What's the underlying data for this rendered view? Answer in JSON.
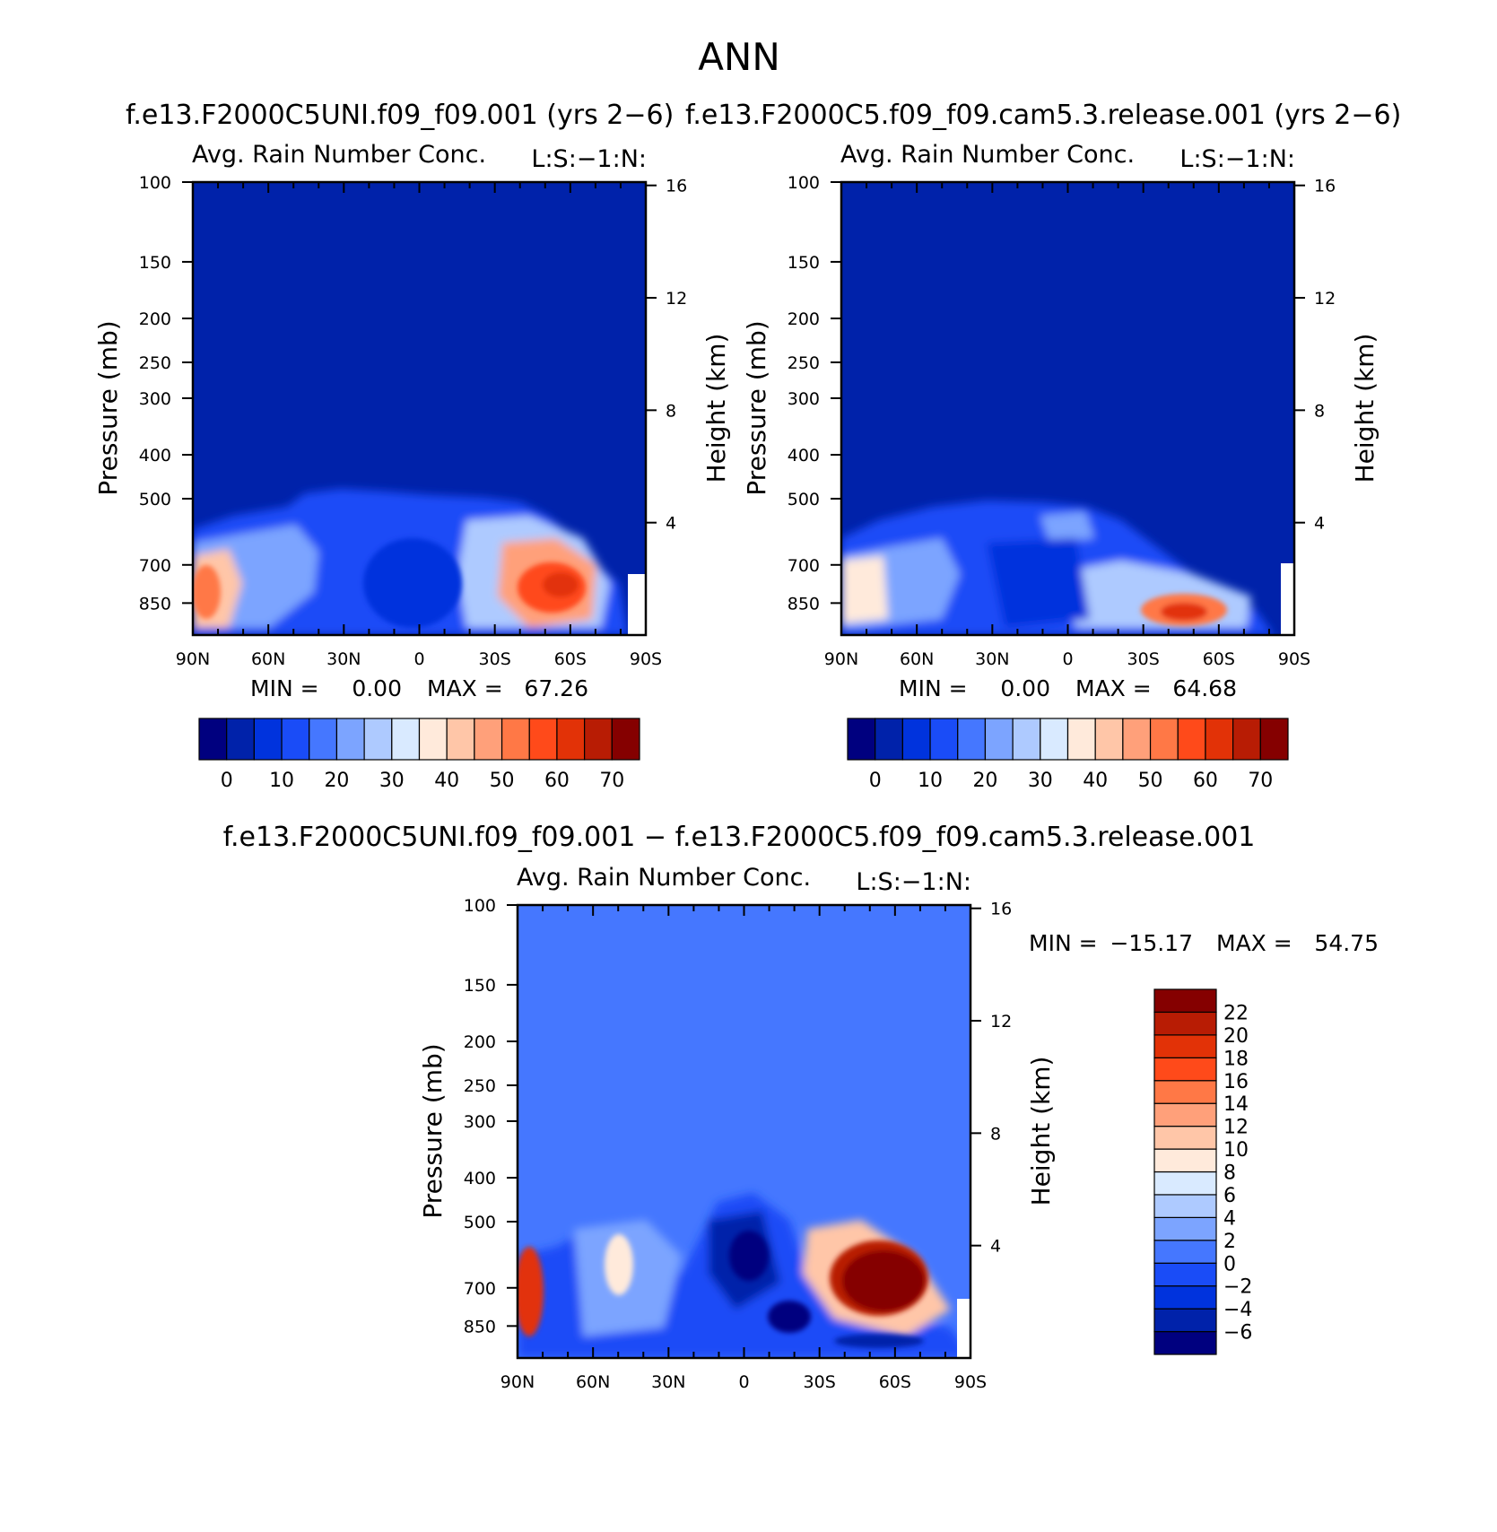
{
  "figure_title": "ANN",
  "panels": [
    {
      "case_title": "f.e13.F2000C5UNI.f09_f09.001 (yrs 2−6)",
      "variable": "Avg. Rain Number Conc.",
      "right_label": "L:S:−1:N:",
      "ylabel_left": "Pressure (mb)",
      "ylabel_right": "Height (km)",
      "min_label": "MIN =",
      "min_value": "0.00",
      "max_label": "MAX =",
      "max_value": "67.26"
    },
    {
      "case_title": "f.e13.F2000C5.f09_f09.cam5.3.release.001 (yrs 2−6)",
      "variable": "Avg. Rain Number Conc.",
      "right_label": "L:S:−1:N:",
      "ylabel_left": "Pressure (mb)",
      "ylabel_right": "Height (km)",
      "min_label": "MIN =",
      "min_value": "0.00",
      "max_label": "MAX =",
      "max_value": "64.68"
    },
    {
      "case_title": "f.e13.F2000C5UNI.f09_f09.001 − f.e13.F2000C5.f09_f09.cam5.3.release.001",
      "variable": "Avg. Rain Number Conc.",
      "right_label": "L:S:−1:N:",
      "ylabel_left": "Pressure (mb)",
      "ylabel_right": "Height (km)",
      "min_label": "MIN =",
      "min_value": "−15.17",
      "max_label": "MAX =",
      "max_value": "54.75"
    }
  ],
  "chart_data": [
    {
      "type": "heatmap",
      "title": "Avg. Rain Number Conc.",
      "subtitle": "f.e13.F2000C5UNI.f09_f09.001 (yrs 2−6)",
      "xlabel": "",
      "ylabel": "Pressure (mb)",
      "y2label": "Height (km)",
      "x_ticks": [
        "90N",
        "60N",
        "30N",
        "0",
        "30S",
        "60S",
        "90S"
      ],
      "x_values": [
        90,
        60,
        30,
        0,
        -30,
        -60,
        -90
      ],
      "xlim": [
        90,
        -90
      ],
      "y_ticks": [
        100,
        150,
        200,
        250,
        300,
        400,
        500,
        700,
        850
      ],
      "ylim": [
        100,
        1000
      ],
      "y_scale": "log",
      "y2_ticks": [
        16,
        12,
        8,
        4
      ],
      "min": 0.0,
      "max": 67.26,
      "colorbar_levels": [
        0,
        5,
        10,
        15,
        20,
        25,
        30,
        35,
        40,
        45,
        50,
        55,
        60,
        65,
        70
      ],
      "colorbar_labels": [
        "0",
        "10",
        "20",
        "30",
        "40",
        "50",
        "60",
        "70"
      ],
      "colorbar_colors": [
        "#00007f",
        "#0022aa",
        "#0033dd",
        "#1a4cf7",
        "#4577ff",
        "#7ca4ff",
        "#aecaff",
        "#d9eaff",
        "#ffeadb",
        "#ffc6a8",
        "#ffa07a",
        "#ff7846",
        "#ff4a1a",
        "#e23207",
        "#b81c04",
        "#850000"
      ]
    },
    {
      "type": "heatmap",
      "title": "Avg. Rain Number Conc.",
      "subtitle": "f.e13.F2000C5.f09_f09.cam5.3.release.001 (yrs 2−6)",
      "xlabel": "",
      "ylabel": "Pressure (mb)",
      "y2label": "Height (km)",
      "x_ticks": [
        "90N",
        "60N",
        "30N",
        "0",
        "30S",
        "60S",
        "90S"
      ],
      "x_values": [
        90,
        60,
        30,
        0,
        -30,
        -60,
        -90
      ],
      "xlim": [
        90,
        -90
      ],
      "y_ticks": [
        100,
        150,
        200,
        250,
        300,
        400,
        500,
        700,
        850
      ],
      "ylim": [
        100,
        1000
      ],
      "y_scale": "log",
      "y2_ticks": [
        16,
        12,
        8,
        4
      ],
      "min": 0.0,
      "max": 64.68,
      "colorbar_levels": [
        0,
        5,
        10,
        15,
        20,
        25,
        30,
        35,
        40,
        45,
        50,
        55,
        60,
        65,
        70
      ],
      "colorbar_labels": [
        "0",
        "10",
        "20",
        "30",
        "40",
        "50",
        "60",
        "70"
      ],
      "colorbar_colors": [
        "#00007f",
        "#0022aa",
        "#0033dd",
        "#1a4cf7",
        "#4577ff",
        "#7ca4ff",
        "#aecaff",
        "#d9eaff",
        "#ffeadb",
        "#ffc6a8",
        "#ffa07a",
        "#ff7846",
        "#ff4a1a",
        "#e23207",
        "#b81c04",
        "#850000"
      ]
    },
    {
      "type": "heatmap",
      "title": "Avg. Rain Number Conc.",
      "subtitle": "f.e13.F2000C5UNI.f09_f09.001 − f.e13.F2000C5.f09_f09.cam5.3.release.001",
      "xlabel": "",
      "ylabel": "Pressure (mb)",
      "y2label": "Height (km)",
      "x_ticks": [
        "90N",
        "60N",
        "30N",
        "0",
        "30S",
        "60S",
        "90S"
      ],
      "x_values": [
        90,
        60,
        30,
        0,
        -30,
        -60,
        -90
      ],
      "xlim": [
        90,
        -90
      ],
      "y_ticks": [
        100,
        150,
        200,
        250,
        300,
        400,
        500,
        700,
        850
      ],
      "ylim": [
        100,
        1000
      ],
      "y_scale": "log",
      "y2_ticks": [
        16,
        12,
        8,
        4
      ],
      "min": -15.17,
      "max": 54.75,
      "colorbar_levels": [
        -6,
        -4,
        -2,
        0,
        2,
        4,
        6,
        8,
        10,
        12,
        14,
        16,
        18,
        20,
        22
      ],
      "colorbar_labels": [
        "−6",
        "−4",
        "−2",
        "0",
        "2",
        "4",
        "6",
        "8",
        "10",
        "12",
        "14",
        "16",
        "18",
        "20",
        "22"
      ],
      "colorbar_colors": [
        "#00007f",
        "#0022aa",
        "#0033dd",
        "#1a4cf7",
        "#4577ff",
        "#7ca4ff",
        "#aecaff",
        "#d9eaff",
        "#ffeadb",
        "#ffc6a8",
        "#ffa07a",
        "#ff7846",
        "#ff4a1a",
        "#e23207",
        "#b81c04",
        "#850000"
      ]
    }
  ]
}
